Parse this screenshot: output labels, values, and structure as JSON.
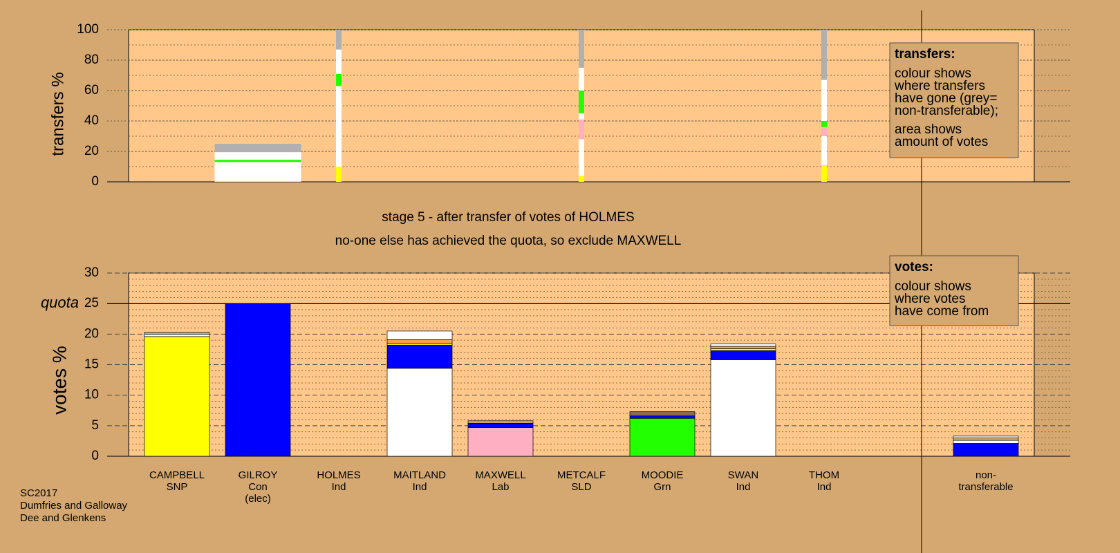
{
  "chart_data": {
    "type": "stv-stage",
    "top_axis_label": "transfers %",
    "bottom_axis_label": "votes %",
    "top_ylim": [
      0,
      100
    ],
    "top_yticks": [
      0,
      20,
      40,
      60,
      80,
      100
    ],
    "ylim": [
      0,
      30
    ],
    "yticks": [
      0,
      5,
      10,
      15,
      20,
      25,
      30
    ],
    "quota": {
      "value": 25,
      "label": "quota"
    },
    "stage_title": "stage 5 - after transfer of votes of HOLMES",
    "stage_note": "no-one else has achieved the quota, so exclude MAXWELL",
    "categories": [
      [
        "CAMPBELL",
        "SNP"
      ],
      [
        "GILROY",
        "Con",
        "(elec)"
      ],
      [
        "HOLMES",
        "Ind"
      ],
      [
        "MAITLAND",
        "Ind"
      ],
      [
        "MAXWELL",
        "Lab"
      ],
      [
        "METCALF",
        "SLD"
      ],
      [
        "MOODIE",
        "Grn"
      ],
      [
        "SWAN",
        "Ind"
      ],
      [
        "THOM",
        "Ind"
      ],
      [
        "non-",
        "transferable"
      ]
    ],
    "bars": [
      {
        "segments": [
          {
            "color": "#ffff00",
            "value": 19.6
          },
          {
            "color": "#ffffff",
            "value": 0.4
          },
          {
            "color": "#d4a870",
            "value": 0.3
          }
        ]
      },
      {
        "segments": [
          {
            "color": "#0000ff",
            "value": 25
          }
        ]
      },
      {
        "segments": []
      },
      {
        "segments": [
          {
            "color": "#ffffff",
            "value": 14.4
          },
          {
            "color": "#0000ff",
            "value": 3.8
          },
          {
            "color": "#ffff00",
            "value": 0.3
          },
          {
            "color": "#f0a050",
            "value": 0.6
          },
          {
            "color": "#ffffff",
            "value": 1.4
          }
        ]
      },
      {
        "segments": [
          {
            "color": "#ffb0c0",
            "value": 4.7
          },
          {
            "color": "#0000ff",
            "value": 0.7
          },
          {
            "color": "#d4a870",
            "value": 0.4
          }
        ]
      },
      {
        "segments": []
      },
      {
        "segments": [
          {
            "color": "#22ff00",
            "value": 6.2
          },
          {
            "color": "#0000ff",
            "value": 0.4
          },
          {
            "color": "#8a6a50",
            "value": 0.7
          }
        ]
      },
      {
        "segments": [
          {
            "color": "#ffffff",
            "value": 15.8
          },
          {
            "color": "#0000ff",
            "value": 1.5
          },
          {
            "color": "#ffff00",
            "value": 0.3
          },
          {
            "color": "#f0a050",
            "value": 0.4
          },
          {
            "color": "#ffffff",
            "value": 0.4
          }
        ]
      },
      {
        "segments": []
      },
      {
        "segments": [
          {
            "color": "#0000ff",
            "value": 2.1
          },
          {
            "color": "#ffffff",
            "value": 0.5
          },
          {
            "color": "#d4a870",
            "value": 0.4
          },
          {
            "color": "#ffffff",
            "value": 0.3
          }
        ]
      }
    ],
    "transfers": [
      null,
      {
        "segments": [
          {
            "color": "#ffff00",
            "value": 0.5
          },
          {
            "color": "#ffffff",
            "value": 12.5
          },
          {
            "color": "#22ff00",
            "value": 1.5
          },
          {
            "color": "#ffffff",
            "value": 5
          },
          {
            "color": "#b0b0b0",
            "value": 5.5
          }
        ]
      },
      {
        "segments": [
          {
            "color": "#ffff00",
            "value": 10
          },
          {
            "color": "#ffffff",
            "value": 53
          },
          {
            "color": "#22ff00",
            "value": 8
          },
          {
            "color": "#ffffff",
            "value": 16
          },
          {
            "color": "#b0b0b0",
            "value": 13
          }
        ]
      },
      null,
      null,
      {
        "segments": [
          {
            "color": "#ffff00",
            "value": 4
          },
          {
            "color": "#ffffff",
            "value": 24
          },
          {
            "color": "#ffb0c0",
            "value": 13
          },
          {
            "color": "#ffffff",
            "value": 4
          },
          {
            "color": "#22ff00",
            "value": 15
          },
          {
            "color": "#ffffff",
            "value": 15
          },
          {
            "color": "#b0b0b0",
            "value": 25
          }
        ]
      },
      null,
      null,
      {
        "segments": [
          {
            "color": "#ffff00",
            "value": 11
          },
          {
            "color": "#ffffff",
            "value": 19
          },
          {
            "color": "#ffb0c0",
            "value": 6
          },
          {
            "color": "#22ff00",
            "value": 4
          },
          {
            "color": "#ffffff",
            "value": 27
          },
          {
            "color": "#b0b0b0",
            "value": 33
          }
        ]
      },
      null
    ],
    "transfers_note": {
      "title": "transfers:",
      "lines": [
        "colour shows",
        "where transfers",
        "have gone (grey=",
        "non-transferable);",
        "area shows",
        "amount of votes"
      ]
    },
    "votes_note": {
      "title": "votes:",
      "lines": [
        "colour shows",
        "where votes",
        "have come from"
      ]
    },
    "footer": [
      "SC2017",
      "Dumfries and Galloway",
      "Dee and Glenkens"
    ]
  }
}
